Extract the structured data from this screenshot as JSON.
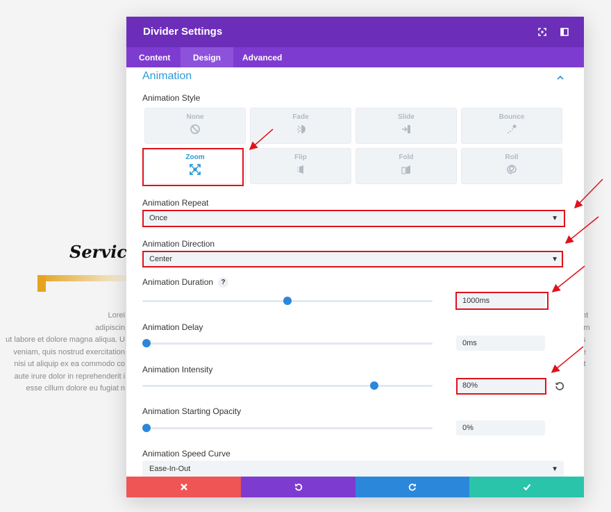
{
  "background": {
    "heading": "Services",
    "text_left": [
      "Lorei",
      "adipiscin",
      "ut labore et dolore magna aliqua. U",
      "veniam, quis nostrud exercitation",
      "nisi ut aliquip ex ea commodo co",
      "aute irure dolor in reprehenderit i",
      "esse cillum dolore eu fugiat n"
    ],
    "text_right": [
      "",
      "nt",
      "im",
      "s",
      "e",
      "it",
      ""
    ]
  },
  "modal": {
    "title": "Divider Settings",
    "header_icons": [
      "expand-icon",
      "sidebar-toggle-icon"
    ],
    "tabs": [
      {
        "label": "Content",
        "active": false
      },
      {
        "label": "Design",
        "active": true
      },
      {
        "label": "Advanced",
        "active": false
      }
    ],
    "section_title": "Animation",
    "animation_style": {
      "label": "Animation Style",
      "options": [
        {
          "name": "None",
          "icon": "none-icon"
        },
        {
          "name": "Fade",
          "icon": "fade-icon"
        },
        {
          "name": "Slide",
          "icon": "slide-icon"
        },
        {
          "name": "Bounce",
          "icon": "bounce-icon"
        },
        {
          "name": "Zoom",
          "icon": "zoom-icon",
          "selected": true
        },
        {
          "name": "Flip",
          "icon": "flip-icon"
        },
        {
          "name": "Fold",
          "icon": "fold-icon"
        },
        {
          "name": "Roll",
          "icon": "roll-icon"
        }
      ]
    },
    "animation_repeat": {
      "label": "Animation Repeat",
      "value": "Once"
    },
    "animation_direction": {
      "label": "Animation Direction",
      "value": "Center"
    },
    "animation_duration": {
      "label": "Animation Duration",
      "help": "?",
      "value": "1000ms",
      "slider_fraction": 0.5
    },
    "animation_delay": {
      "label": "Animation Delay",
      "value": "0ms",
      "slider_fraction": 0.0
    },
    "animation_intensity": {
      "label": "Animation Intensity",
      "value": "80%",
      "slider_fraction": 0.8
    },
    "animation_starting_opacity": {
      "label": "Animation Starting Opacity",
      "value": "0%",
      "slider_fraction": 0.0
    },
    "animation_speed_curve": {
      "label": "Animation Speed Curve",
      "value": "Ease-In-Out"
    },
    "caret": "▼"
  },
  "colors": {
    "header": "#6c2eb9",
    "tabs": "#7e3bd0",
    "accent": "#2e9ad6",
    "cancel": "#ef5555",
    "undo": "#7e3bd0",
    "redo": "#2b87da",
    "save": "#29c4a9",
    "annotation": "#e0111a"
  }
}
